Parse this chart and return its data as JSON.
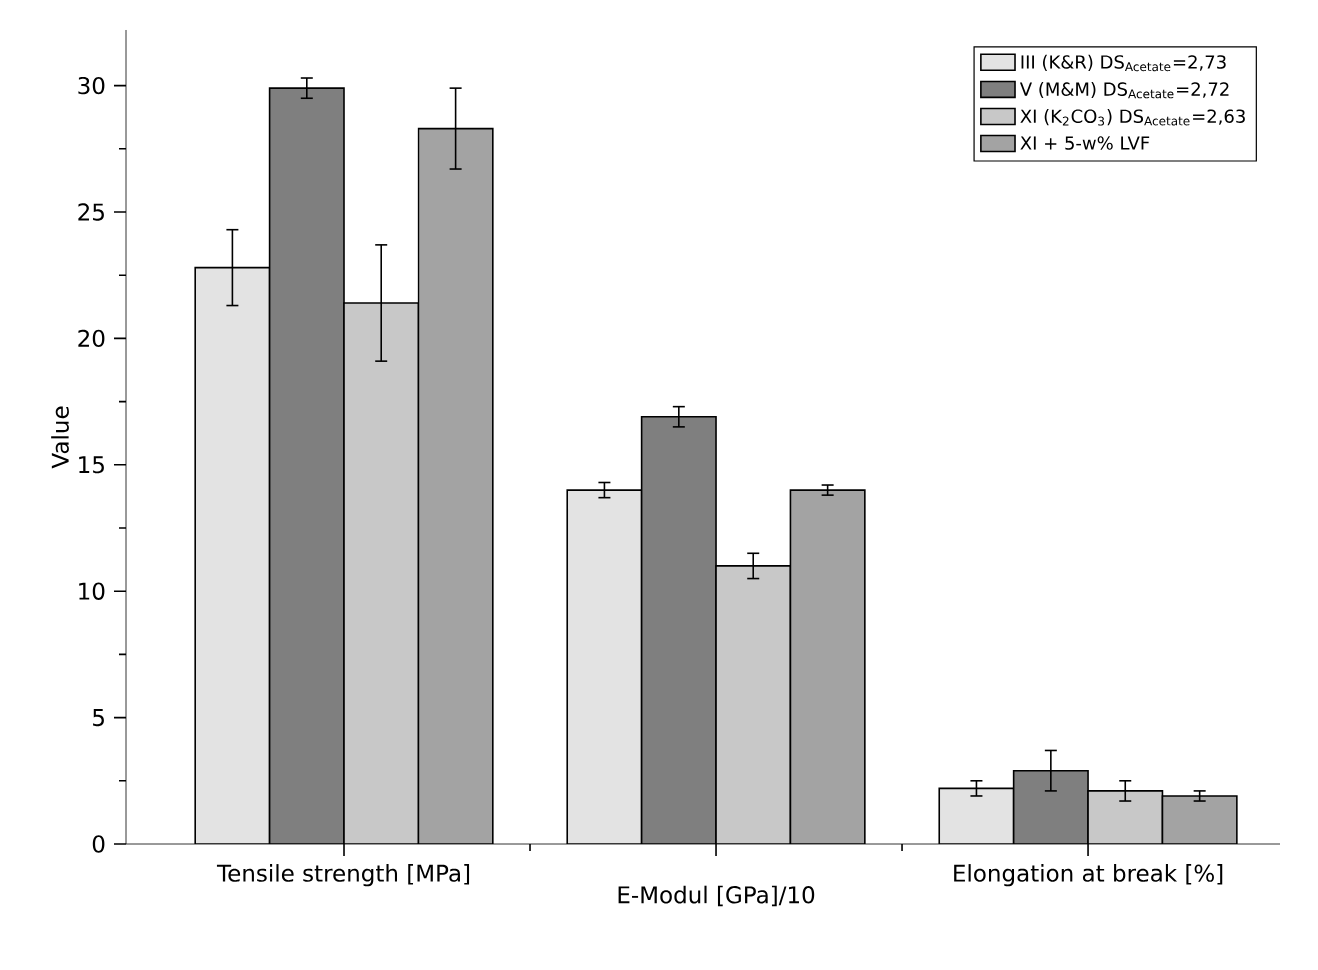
{
  "chart_data": {
    "type": "bar",
    "ylabel": "Value",
    "categories": [
      "Tensile strength [MPa]",
      "E-Modul [GPa]/10",
      "Elongation at break [%]"
    ],
    "series": [
      {
        "name": "III (K&R)   DS$_{Acetate}$=2,73",
        "color": "#e3e3e3",
        "values": [
          22.8,
          14.0,
          2.2
        ],
        "errors": [
          1.5,
          0.3,
          0.3
        ]
      },
      {
        "name": "V (M&M)   DS$_{Acetate}$=2,72",
        "color": "#7f7f7f",
        "values": [
          29.9,
          16.9,
          2.9
        ],
        "errors": [
          0.4,
          0.4,
          0.8
        ]
      },
      {
        "name": "XI (K$_{2}$CO$_{3}$)   DS$_{Acetate}$=2,63",
        "color": "#c8c8c8",
        "values": [
          21.4,
          11.0,
          2.1
        ],
        "errors": [
          2.3,
          0.5,
          0.4
        ]
      },
      {
        "name": "XI + 5-w% LVF",
        "color": "#a3a3a3",
        "values": [
          28.3,
          14.0,
          1.9
        ],
        "errors": [
          1.6,
          0.2,
          0.2
        ]
      }
    ],
    "ylim": [
      0,
      32.2
    ],
    "yticks": [
      0,
      5,
      10,
      15,
      20,
      25,
      30
    ],
    "legend": "top right"
  }
}
